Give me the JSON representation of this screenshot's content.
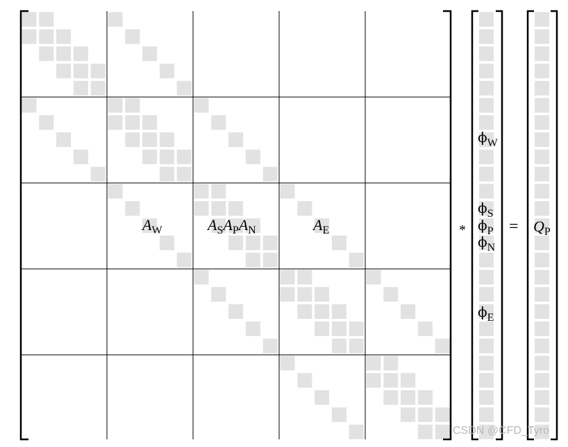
{
  "matrix": {
    "label_w": {
      "main": "A",
      "sub": "W"
    },
    "label_s": {
      "main": "A",
      "sub": "S"
    },
    "label_p": {
      "main": "A",
      "sub": "P"
    },
    "label_n": {
      "main": "A",
      "sub": "N"
    },
    "label_e": {
      "main": "A",
      "sub": "E"
    }
  },
  "operators": {
    "multiply": "*",
    "equals": "="
  },
  "phi_vector": {
    "symbol": "ϕ",
    "labels": [
      {
        "key": "phi-w",
        "sub": "W"
      },
      {
        "key": "phi-s",
        "sub": "S"
      },
      {
        "key": "phi-p",
        "sub": "P"
      },
      {
        "key": "phi-n",
        "sub": "N"
      },
      {
        "key": "phi-e",
        "sub": "E"
      }
    ]
  },
  "rhs": {
    "main": "Q",
    "sub": "P"
  },
  "watermark": "CSDN @CFD_Tyro",
  "colors": {
    "cell": "#e2e2e2",
    "line": "#000000"
  }
}
